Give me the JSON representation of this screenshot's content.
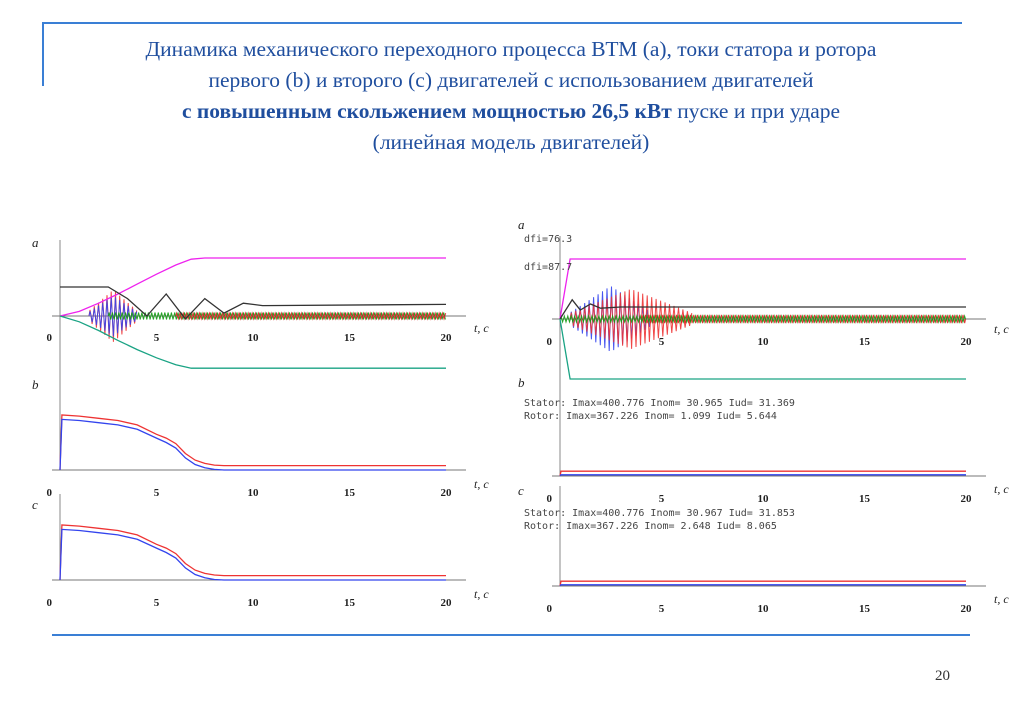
{
  "title": {
    "line1": "Динамика механического переходного процесса ВТМ (а), токи статора и ротора",
    "line2": "первого (b) и второго (с) двигателей с использованием двигателей",
    "line3_bold": "с повышенным скольжением мощностью 26,5 кВт",
    "line3_rest": " пуске и при ударе",
    "line4": "(линейная модель двигателей)"
  },
  "page_number": "20",
  "colors": {
    "accent": "#3a7fd5",
    "title": "#1f4e9e",
    "magenta": "#ee22ee",
    "dark": "#333333",
    "teal": "#1aa384",
    "red": "#ee3333",
    "blue": "#3344ee",
    "green": "#119911",
    "crimson": "#dd2222"
  },
  "chart_data": [
    {
      "type": "line",
      "panel": "a",
      "side": "left",
      "label": "a",
      "xlabel": "t, c",
      "xlim": [
        0,
        20
      ],
      "x_ticks": [
        "0",
        "5",
        "10",
        "15",
        "20"
      ],
      "series": [
        {
          "color": "magenta",
          "x": [
            0,
            1,
            2,
            3,
            4,
            5,
            6,
            6.8,
            7.5,
            20
          ],
          "y": [
            0,
            0.08,
            0.22,
            0.38,
            0.55,
            0.72,
            0.88,
            0.98,
            1.0,
            1.0
          ]
        },
        {
          "color": "dark",
          "x": [
            0,
            2.5,
            3.5,
            4.5,
            5.5,
            6.5,
            7.5,
            8.5,
            9.5,
            10.5,
            20
          ],
          "y": [
            0.5,
            0.5,
            0.3,
            0.0,
            0.38,
            -0.05,
            0.3,
            0.05,
            0.22,
            0.18,
            0.2
          ]
        },
        {
          "color": "teal",
          "x": [
            0,
            1,
            2,
            3,
            4,
            5,
            6,
            6.8,
            7.5,
            20
          ],
          "y": [
            0,
            -0.1,
            -0.25,
            -0.42,
            -0.58,
            -0.72,
            -0.84,
            -0.9,
            -0.9,
            -0.9
          ]
        }
      ],
      "oscillation_envelope": [
        {
          "color": "red",
          "x_range": [
            1.5,
            4.0
          ],
          "amplitude": 0.45
        },
        {
          "color": "blue",
          "x_range": [
            1.5,
            4.0
          ],
          "amplitude": 0.35
        },
        {
          "color": "green",
          "x_range": [
            2.5,
            20
          ],
          "amplitude": 0.06
        },
        {
          "color": "crimson",
          "x_range": [
            6,
            20
          ],
          "amplitude": 0.05
        }
      ]
    },
    {
      "type": "line",
      "panel": "b",
      "side": "left",
      "label": "b",
      "xlabel": "t, c",
      "xlim": [
        0,
        20
      ],
      "x_ticks": [
        "0",
        "5",
        "10",
        "15",
        "20"
      ],
      "series": [
        {
          "color": "red",
          "x": [
            0,
            0.1,
            1,
            2,
            3,
            4,
            5,
            5.5,
            6,
            6.5,
            7,
            7.5,
            8,
            8.5,
            20
          ],
          "y": [
            0,
            1.0,
            0.98,
            0.94,
            0.9,
            0.82,
            0.65,
            0.58,
            0.48,
            0.3,
            0.18,
            0.12,
            0.09,
            0.08,
            0.08
          ]
        },
        {
          "color": "blue",
          "x": [
            0,
            0.1,
            1,
            2,
            3,
            4,
            5,
            5.5,
            6,
            6.5,
            7,
            7.5,
            8,
            8.5,
            20
          ],
          "y": [
            0,
            0.92,
            0.9,
            0.86,
            0.82,
            0.74,
            0.58,
            0.5,
            0.4,
            0.22,
            0.1,
            0.04,
            0.01,
            0.0,
            0.0
          ]
        }
      ]
    },
    {
      "type": "line",
      "panel": "c",
      "side": "left",
      "label": "c",
      "xlabel": "t, c",
      "xlim": [
        0,
        20
      ],
      "x_ticks": [
        "0",
        "5",
        "10",
        "15",
        "20"
      ],
      "series": [
        {
          "color": "red",
          "x": [
            0,
            0.1,
            1,
            2,
            3,
            4,
            5,
            5.5,
            6,
            6.5,
            7,
            7.5,
            8,
            8.5,
            20
          ],
          "y": [
            0,
            1.0,
            0.98,
            0.94,
            0.9,
            0.82,
            0.65,
            0.58,
            0.48,
            0.3,
            0.18,
            0.12,
            0.09,
            0.08,
            0.08
          ]
        },
        {
          "color": "blue",
          "x": [
            0,
            0.1,
            1,
            2,
            3,
            4,
            5,
            5.5,
            6,
            6.5,
            7,
            7.5,
            8,
            8.5,
            20
          ],
          "y": [
            0,
            0.92,
            0.9,
            0.86,
            0.82,
            0.74,
            0.58,
            0.5,
            0.4,
            0.22,
            0.1,
            0.04,
            0.01,
            0.0,
            0.0
          ]
        }
      ]
    },
    {
      "type": "line",
      "panel": "a",
      "side": "right",
      "label": "a",
      "annotations": [
        "dfi=76.3",
        "dfi=87.7"
      ],
      "xlabel": "t, c",
      "xlim": [
        0,
        20
      ],
      "x_ticks": [
        "0",
        "5",
        "10",
        "15",
        "20"
      ],
      "series": [
        {
          "color": "magenta",
          "x": [
            0,
            0.5,
            20
          ],
          "y": [
            0,
            1.0,
            1.0
          ]
        },
        {
          "color": "dark",
          "x": [
            0,
            0.6,
            1.0,
            1.5,
            2.0,
            3.0,
            20
          ],
          "y": [
            0,
            0.32,
            0.15,
            0.25,
            0.18,
            0.2,
            0.2
          ]
        },
        {
          "color": "teal",
          "x": [
            0,
            0.5,
            20
          ],
          "y": [
            0,
            -1.0,
            -1.0
          ]
        }
      ],
      "oscillation_envelope": [
        {
          "color": "blue",
          "x_range": [
            0.5,
            4.5
          ],
          "amplitude": 0.55
        },
        {
          "color": "red",
          "x_range": [
            0.5,
            6.5
          ],
          "amplitude": 0.5
        },
        {
          "color": "crimson",
          "x_range": [
            4,
            20
          ],
          "amplitude": 0.07
        },
        {
          "color": "green",
          "x_range": [
            0,
            20
          ],
          "amplitude": 0.05
        }
      ]
    },
    {
      "type": "line",
      "panel": "b",
      "side": "right",
      "label": "b",
      "stats": [
        "Stator: Imax=400.776 Inom= 30.965 Iud= 31.369",
        "Rotor: Imax=367.226 Inom= 1.099 Iud= 5.644"
      ],
      "xlabel": "t, c",
      "xlim": [
        0,
        20
      ],
      "x_ticks": [
        "0",
        "5",
        "10",
        "15",
        "20"
      ],
      "series": [
        {
          "color": "red",
          "x": [
            0,
            0.05,
            20
          ],
          "y": [
            0,
            0.08,
            0.08
          ]
        },
        {
          "color": "blue",
          "x": [
            0,
            0.05,
            20
          ],
          "y": [
            0,
            0.02,
            0.02
          ]
        }
      ]
    },
    {
      "type": "line",
      "panel": "c",
      "side": "right",
      "label": "c",
      "stats": [
        "Stator: Imax=400.776 Inom= 30.967 Iud= 31.853",
        "Rotor: Imax=367.226 Inom= 2.648 Iud= 8.065"
      ],
      "xlabel": "t, c",
      "xlim": [
        0,
        20
      ],
      "x_ticks": [
        "0",
        "5",
        "10",
        "15",
        "20"
      ],
      "series": [
        {
          "color": "red",
          "x": [
            0,
            0.05,
            20
          ],
          "y": [
            0,
            0.08,
            0.08
          ]
        },
        {
          "color": "blue",
          "x": [
            0,
            0.05,
            20
          ],
          "y": [
            0,
            0.02,
            0.02
          ]
        }
      ]
    }
  ]
}
